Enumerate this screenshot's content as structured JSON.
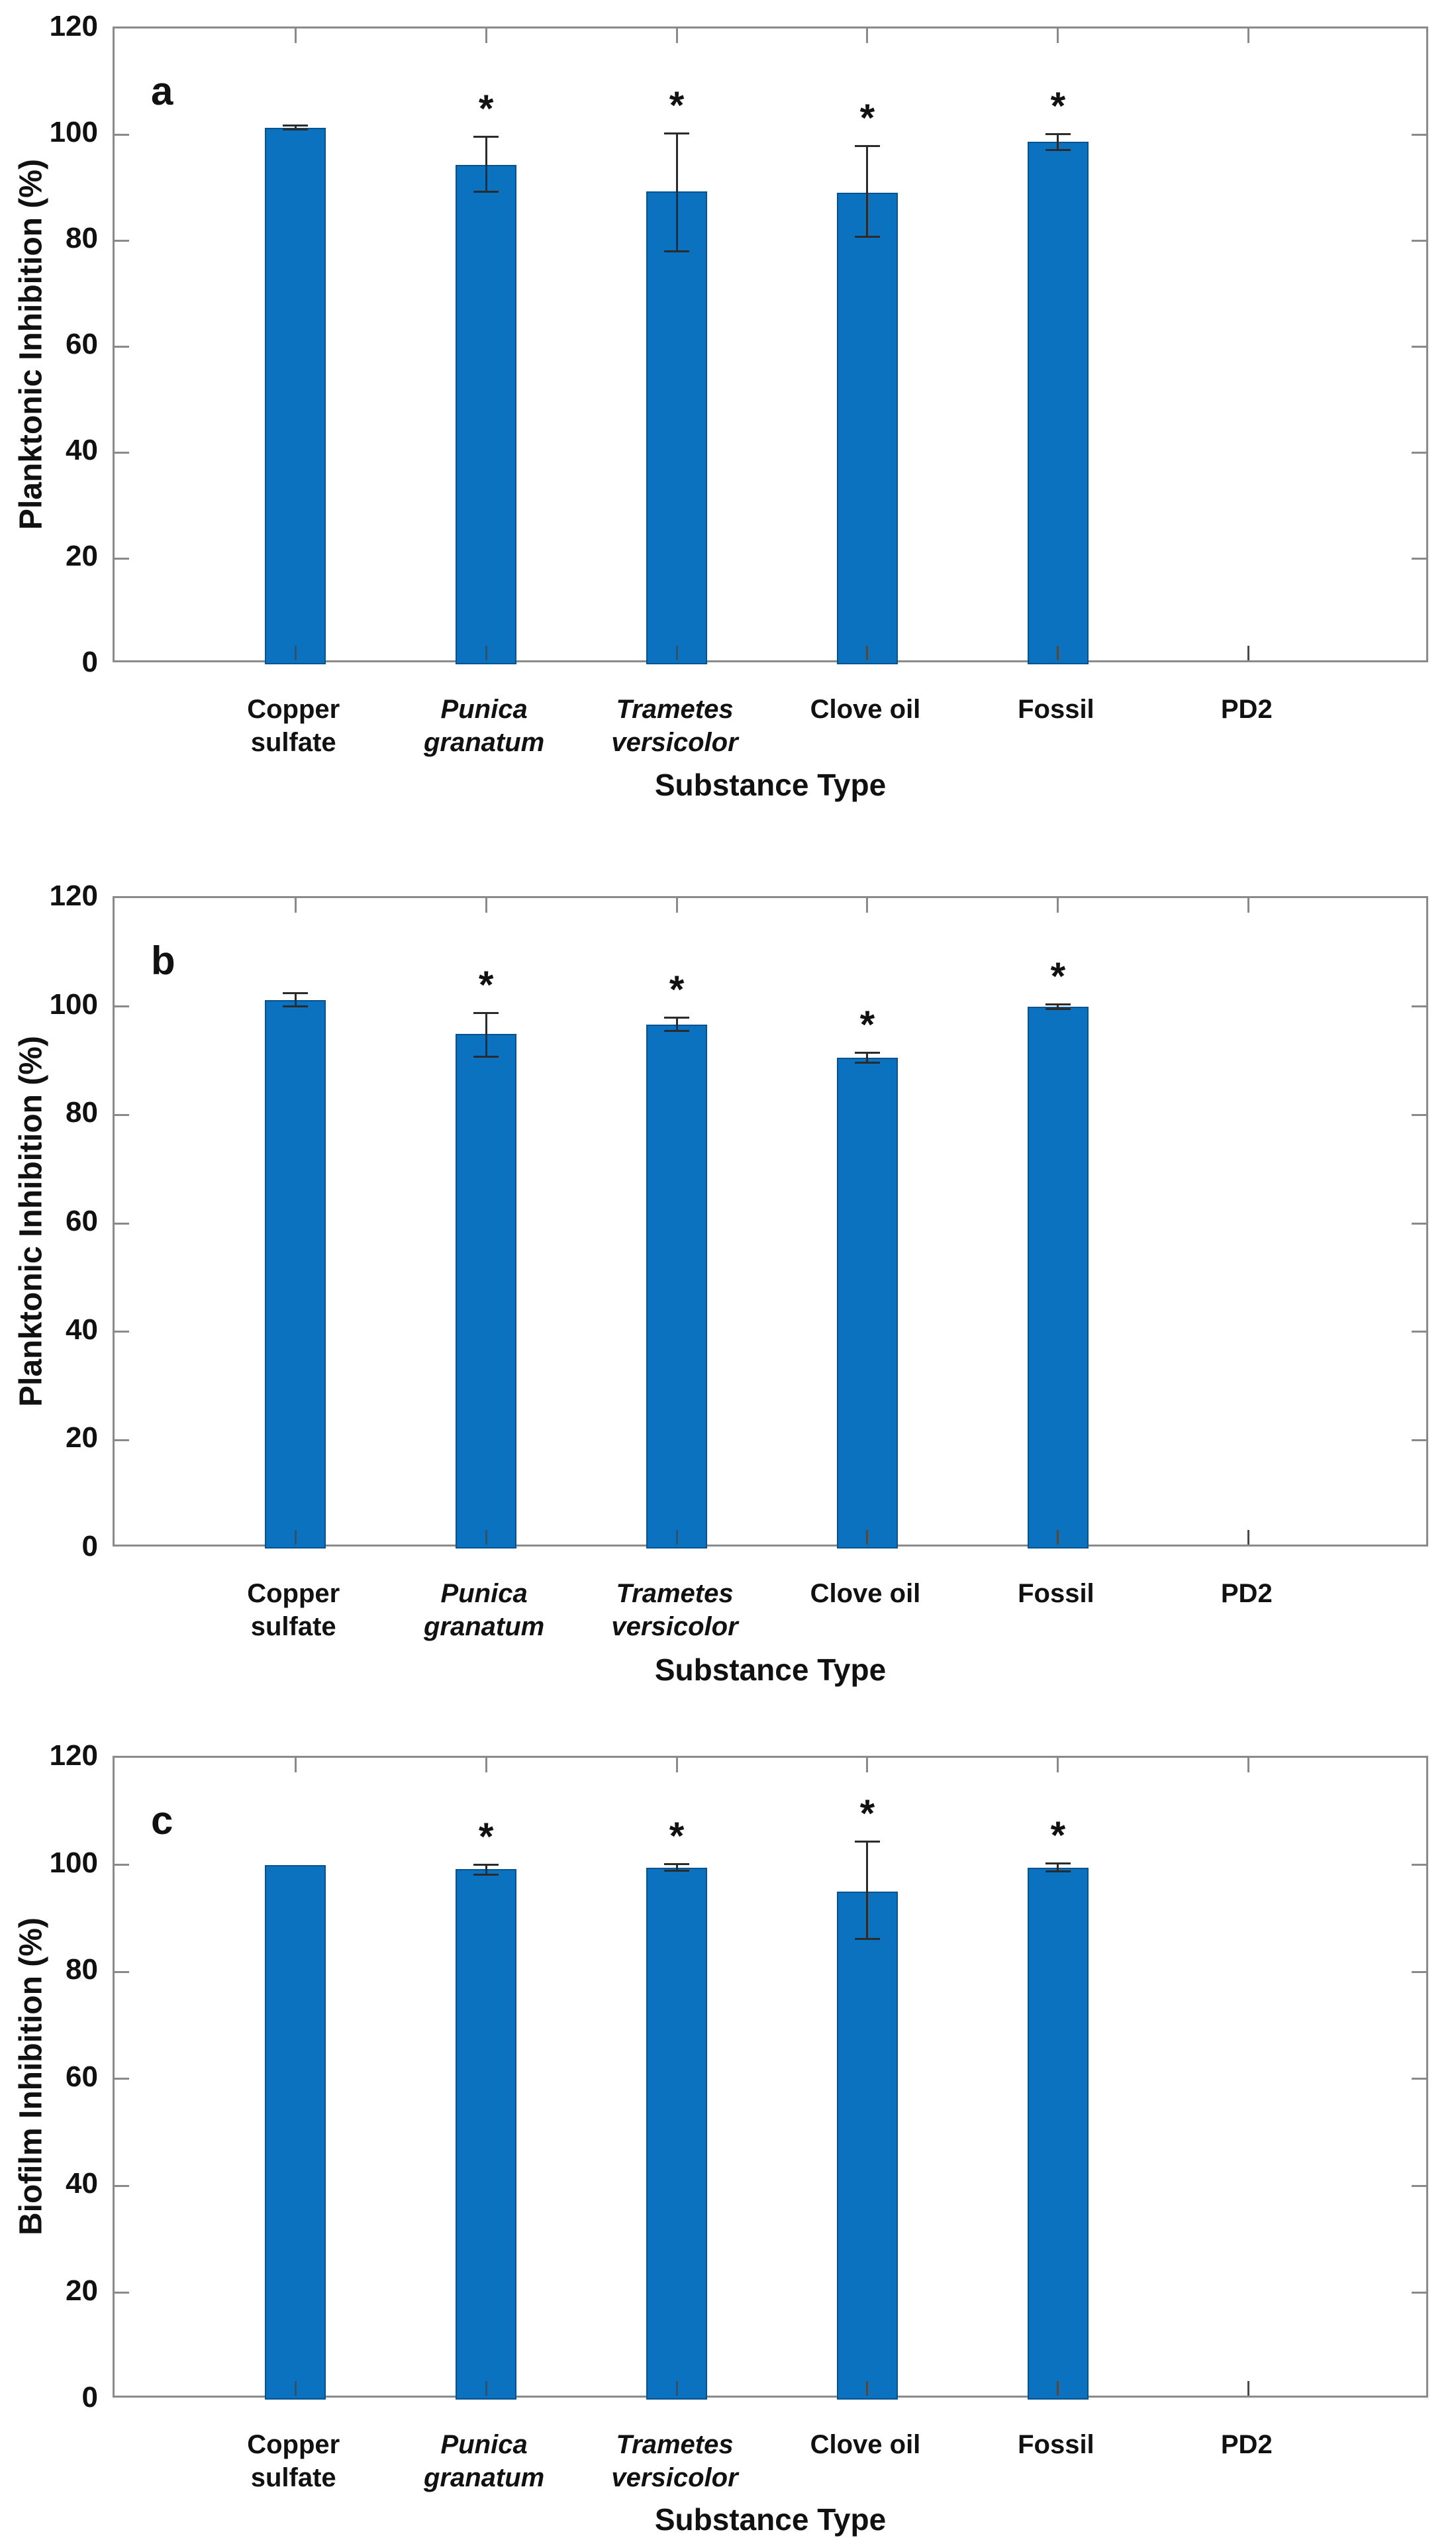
{
  "figure": {
    "bar_color": "#0b72c0",
    "bar_edge_color": "#07538f",
    "axis_color": "#8a8a8a",
    "error_bar_color": "#2b2b2b",
    "text_color": "#111111",
    "significance_marker": "*"
  },
  "chart_data": [
    {
      "type": "bar",
      "panel_label": "a",
      "ylabel": "Planktonic Inhibition (%)",
      "xlabel": "Substance Type",
      "ylim": [
        0,
        120
      ],
      "yticks": [
        0,
        20,
        40,
        60,
        80,
        100,
        120
      ],
      "grid": false,
      "legend": null,
      "categories": [
        {
          "label": "Copper sulfate",
          "lines": [
            "Copper",
            "sulfate"
          ],
          "italic": false
        },
        {
          "label": "Punica granatum",
          "lines": [
            "Punica",
            "granatum"
          ],
          "italic": true
        },
        {
          "label": "Trametes versicolor",
          "lines": [
            "Trametes",
            "versicolor"
          ],
          "italic": true
        },
        {
          "label": "Clove oil",
          "lines": [
            "Clove oil"
          ],
          "italic": false
        },
        {
          "label": "Fossil",
          "lines": [
            "Fossil"
          ],
          "italic": false
        },
        {
          "label": "PD2",
          "lines": [
            "PD2"
          ],
          "italic": false
        }
      ],
      "values": [
        101.3,
        94.2,
        89.2,
        89.0,
        98.6,
        0
      ],
      "error_up": [
        0.6,
        5.5,
        11.2,
        9.0,
        1.7,
        0
      ],
      "error_down": [
        0.6,
        5.2,
        11.5,
        8.5,
        1.7,
        0
      ],
      "significant": [
        false,
        true,
        true,
        true,
        true,
        false
      ]
    },
    {
      "type": "bar",
      "panel_label": "b",
      "ylabel": "Planktonic Inhibition (%)",
      "xlabel": "Substance Type",
      "ylim": [
        0,
        120
      ],
      "yticks": [
        0,
        20,
        40,
        60,
        80,
        100,
        120
      ],
      "grid": false,
      "legend": null,
      "categories": [
        {
          "label": "Copper sulfate",
          "lines": [
            "Copper",
            "sulfate"
          ],
          "italic": false
        },
        {
          "label": "Punica granatum",
          "lines": [
            "Punica",
            "granatum"
          ],
          "italic": true
        },
        {
          "label": "Trametes versicolor",
          "lines": [
            "Trametes",
            "versicolor"
          ],
          "italic": true
        },
        {
          "label": "Clove oil",
          "lines": [
            "Clove oil"
          ],
          "italic": false
        },
        {
          "label": "Fossil",
          "lines": [
            "Fossil"
          ],
          "italic": false
        },
        {
          "label": "PD2",
          "lines": [
            "PD2"
          ],
          "italic": false
        }
      ],
      "values": [
        101.2,
        95.0,
        96.7,
        90.6,
        100.0,
        0
      ],
      "error_up": [
        1.4,
        4.0,
        1.4,
        1.1,
        0.6,
        0
      ],
      "error_down": [
        1.4,
        4.4,
        1.4,
        1.1,
        0.6,
        0
      ],
      "significant": [
        false,
        true,
        true,
        true,
        true,
        false
      ]
    },
    {
      "type": "bar",
      "panel_label": "c",
      "ylabel": "Biofilm Inhibition (%)",
      "xlabel": "Substance Type",
      "ylim": [
        0,
        120
      ],
      "yticks": [
        0,
        20,
        40,
        60,
        80,
        100,
        120
      ],
      "grid": false,
      "legend": null,
      "categories": [
        {
          "label": "Copper sulfate",
          "lines": [
            "Copper",
            "sulfate"
          ],
          "italic": false
        },
        {
          "label": "Punica granatum",
          "lines": [
            "Punica",
            "granatum"
          ],
          "italic": true
        },
        {
          "label": "Trametes versicolor",
          "lines": [
            "Trametes",
            "versicolor"
          ],
          "italic": true
        },
        {
          "label": "Clove oil",
          "lines": [
            "Clove oil"
          ],
          "italic": false
        },
        {
          "label": "Fossil",
          "lines": [
            "Fossil"
          ],
          "italic": false
        },
        {
          "label": "PD2",
          "lines": [
            "PD2"
          ],
          "italic": false
        }
      ],
      "values": [
        100.0,
        99.2,
        99.5,
        95.0,
        99.5,
        0
      ],
      "error_up": [
        0,
        1.0,
        0.8,
        9.5,
        0.9,
        0
      ],
      "error_down": [
        0,
        1.2,
        0.8,
        9.0,
        0.9,
        0
      ],
      "significant": [
        false,
        true,
        true,
        true,
        true,
        false
      ]
    }
  ]
}
